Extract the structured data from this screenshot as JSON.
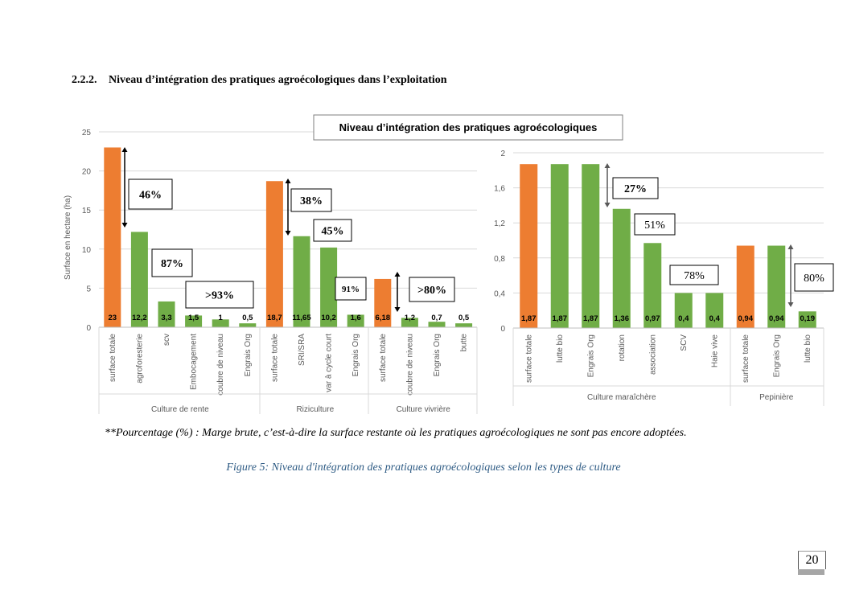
{
  "section": {
    "number": "2.2.2.",
    "title": "Niveau d’intégration des pratiques agroécologiques dans l’exploitation"
  },
  "note": "**Pourcentage (%) : Marge brute, c’est-à-dire la surface restante où les pratiques agroécologiques ne sont pas encore adoptées.",
  "caption": "Figure 5: Niveau d'intégration des pratiques agroécologiques selon les types de culture",
  "page_number": "20",
  "colors": {
    "total": "#ed7d31",
    "practice": "#70ad47",
    "grid": "#d9d9d9",
    "axis_text": "#595959",
    "arrow": "#000000",
    "arrow_gray": "#595959"
  },
  "chart_data": [
    {
      "type": "bar",
      "title": "Niveau d’intégration des pratiques agroécologiques",
      "ylabel": "Surface en hectare (ha)",
      "ylim": [
        0,
        25
      ],
      "yticks": [
        "0",
        "5",
        "10",
        "15",
        "20",
        "25"
      ],
      "categories": [
        "surface totale",
        "agroforesterie",
        "scv",
        "Embocagement",
        "coubre de niveau",
        "Engrais Org",
        "surface totale",
        "SRI/SRA",
        "var à cycle court",
        "Engrais Org",
        "surface totale",
        "coubre de niveau",
        "Engrais Org",
        "butte"
      ],
      "values": [
        23,
        12.2,
        3.3,
        1.5,
        1,
        0.5,
        18.7,
        11.65,
        10.2,
        1.6,
        6.18,
        1.2,
        0.7,
        0.5
      ],
      "value_labels": [
        "23",
        "12,2",
        "3,3",
        "1,5",
        "1",
        "0,5",
        "18,7",
        "11,65",
        "10,2",
        "1,6",
        "6,18",
        "1,2",
        "0,7",
        "0,5"
      ],
      "kinds": [
        "total",
        "practice",
        "practice",
        "practice",
        "practice",
        "practice",
        "total",
        "practice",
        "practice",
        "practice",
        "total",
        "practice",
        "practice",
        "practice"
      ],
      "groups": [
        {
          "label": "Culture de rente",
          "start": 0,
          "count": 6
        },
        {
          "label": "Riziculture",
          "start": 6,
          "count": 4
        },
        {
          "label": "Culture vivrière",
          "start": 10,
          "count": 4
        }
      ],
      "annotations": [
        {
          "text": "46%",
          "bold": true
        },
        {
          "text": "87%",
          "bold": true
        },
        {
          "text": ">93%",
          "bold": true
        },
        {
          "text": "38%",
          "bold": true
        },
        {
          "text": "45%",
          "bold": true
        },
        {
          "text": "91%",
          "bold": true
        },
        {
          "text": ">80%",
          "bold": true
        }
      ]
    },
    {
      "type": "bar",
      "ylim": [
        0,
        2
      ],
      "yticks": [
        "0",
        "0,4",
        "0,8",
        "1,2",
        "1,6",
        "2"
      ],
      "categories": [
        "surface totale",
        "lutte bio",
        "Engrais Org",
        "rotation",
        "association",
        "SCV",
        "Haie vive",
        "surface totale",
        "Engrais Org",
        "lutte bio"
      ],
      "values": [
        1.87,
        1.87,
        1.87,
        1.36,
        0.97,
        0.4,
        0.4,
        0.94,
        0.94,
        0.19
      ],
      "value_labels": [
        "1,87",
        "1,87",
        "1,87",
        "1,36",
        "0,97",
        "0,4",
        "0,4",
        "0,94",
        "0,94",
        "0,19"
      ],
      "kinds": [
        "total",
        "practice",
        "practice",
        "practice",
        "practice",
        "practice",
        "practice",
        "total",
        "practice",
        "practice"
      ],
      "groups": [
        {
          "label": "Culture maraîchère",
          "start": 0,
          "count": 7
        },
        {
          "label": "Pepinière",
          "start": 7,
          "count": 3
        }
      ],
      "annotations": [
        {
          "text": "27%",
          "bold": true
        },
        {
          "text": "51%",
          "bold": false
        },
        {
          "text": "78%",
          "bold": false
        },
        {
          "text": "80%",
          "bold": false
        }
      ]
    }
  ]
}
